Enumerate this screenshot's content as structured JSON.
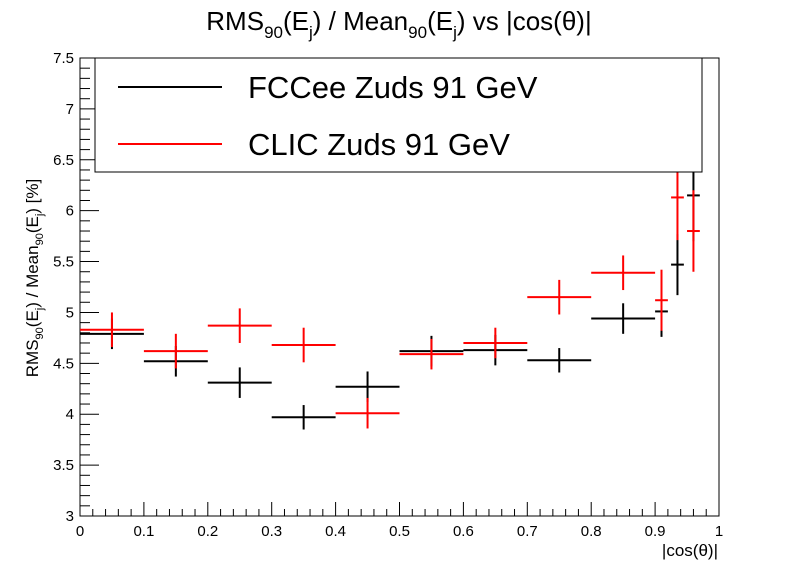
{
  "chart_data": {
    "type": "scatter",
    "title": "RMS_90(E_j) / Mean_90(E_j) vs |cos(θ)|",
    "xlabel": "|cos(θ)|",
    "ylabel": "RMS_90(E_j) / Mean_90(E_j) [%]",
    "xlim": [
      0,
      1
    ],
    "ylim": [
      3,
      7.5
    ],
    "x_ticks": [
      0,
      0.1,
      0.2,
      0.3,
      0.4,
      0.5,
      0.6,
      0.7,
      0.8,
      0.9,
      1
    ],
    "x_tick_labels": [
      "0",
      "0.1",
      "0.2",
      "0.3",
      "0.4",
      "0.5",
      "0.6",
      "0.7",
      "0.8",
      "0.9",
      "1"
    ],
    "y_ticks": [
      3,
      3.5,
      4,
      4.5,
      5,
      5.5,
      6,
      6.5,
      7,
      7.5
    ],
    "y_tick_labels": [
      "3",
      "3.5",
      "4",
      "4.5",
      "5",
      "5.5",
      "6",
      "6.5",
      "7",
      "7.5"
    ],
    "legend_position": "top",
    "grid": false,
    "series": [
      {
        "name": "FCCee Zuds 91 GeV",
        "color": "#000000",
        "points": [
          {
            "x": 0.05,
            "xerr": 0.05,
            "y": 4.79,
            "yerr": 0.15
          },
          {
            "x": 0.15,
            "xerr": 0.05,
            "y": 4.52,
            "yerr": 0.15
          },
          {
            "x": 0.25,
            "xerr": 0.05,
            "y": 4.31,
            "yerr": 0.15
          },
          {
            "x": 0.35,
            "xerr": 0.05,
            "y": 3.97,
            "yerr": 0.12
          },
          {
            "x": 0.45,
            "xerr": 0.05,
            "y": 4.27,
            "yerr": 0.15
          },
          {
            "x": 0.55,
            "xerr": 0.05,
            "y": 4.62,
            "yerr": 0.15
          },
          {
            "x": 0.65,
            "xerr": 0.05,
            "y": 4.63,
            "yerr": 0.15
          },
          {
            "x": 0.75,
            "xerr": 0.05,
            "y": 4.53,
            "yerr": 0.12
          },
          {
            "x": 0.85,
            "xerr": 0.05,
            "y": 4.94,
            "yerr": 0.15
          },
          {
            "x": 0.91,
            "xerr": 0.01,
            "y": 5.01,
            "yerr": 0.25
          },
          {
            "x": 0.935,
            "xerr": 0.01,
            "y": 5.47,
            "yerr": 0.3
          },
          {
            "x": 0.96,
            "xerr": 0.01,
            "y": 6.15,
            "yerr": 0.45
          }
        ]
      },
      {
        "name": "CLIC Zuds 91 GeV",
        "color": "#ff0000",
        "points": [
          {
            "x": 0.05,
            "xerr": 0.05,
            "y": 4.83,
            "yerr": 0.17
          },
          {
            "x": 0.15,
            "xerr": 0.05,
            "y": 4.62,
            "yerr": 0.17
          },
          {
            "x": 0.25,
            "xerr": 0.05,
            "y": 4.87,
            "yerr": 0.17
          },
          {
            "x": 0.35,
            "xerr": 0.05,
            "y": 4.68,
            "yerr": 0.17
          },
          {
            "x": 0.45,
            "xerr": 0.05,
            "y": 4.01,
            "yerr": 0.15
          },
          {
            "x": 0.55,
            "xerr": 0.05,
            "y": 4.59,
            "yerr": 0.15
          },
          {
            "x": 0.65,
            "xerr": 0.05,
            "y": 4.7,
            "yerr": 0.15
          },
          {
            "x": 0.75,
            "xerr": 0.05,
            "y": 5.15,
            "yerr": 0.17
          },
          {
            "x": 0.85,
            "xerr": 0.05,
            "y": 5.39,
            "yerr": 0.17
          },
          {
            "x": 0.91,
            "xerr": 0.01,
            "y": 5.12,
            "yerr": 0.3
          },
          {
            "x": 0.935,
            "xerr": 0.01,
            "y": 6.13,
            "yerr": 0.42
          },
          {
            "x": 0.96,
            "xerr": 0.01,
            "y": 5.8,
            "yerr": 0.4
          }
        ]
      }
    ]
  }
}
